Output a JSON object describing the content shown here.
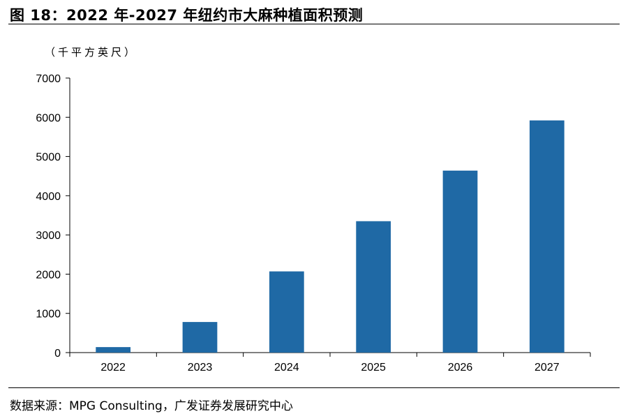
{
  "figure_title": "图 18：2022 年-2027 年纽约市大麻种植面积预测",
  "source_note": "数据来源：MPG Consulting，广发证券发展研究中心",
  "colors": {
    "bar": "#1f69a5",
    "axis": "#000000"
  },
  "chart_data": {
    "type": "bar",
    "title": "2022 年-2027 年纽约市大麻种植面积预测",
    "ylabel": "（千平方英尺）",
    "xlabel": "",
    "categories": [
      "2022",
      "2023",
      "2024",
      "2025",
      "2026",
      "2027"
    ],
    "values": [
      140,
      780,
      2070,
      3350,
      4640,
      5920
    ],
    "ylim": [
      0,
      7000
    ],
    "yticks": [
      0,
      1000,
      2000,
      3000,
      4000,
      5000,
      6000,
      7000
    ],
    "grid": false,
    "legend": "none"
  }
}
